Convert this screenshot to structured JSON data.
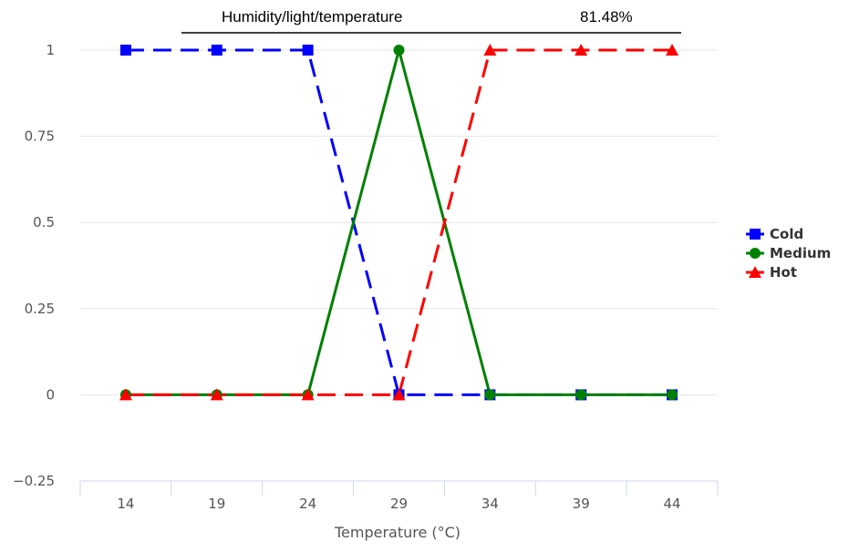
{
  "header": {
    "title": "Humidity/light/temperature",
    "value": "81.48%"
  },
  "chart_data": {
    "type": "line",
    "xlabel": "Temperature (°C)",
    "ylabel": "",
    "categories": [
      "14",
      "19",
      "24",
      "29",
      "34",
      "39",
      "44"
    ],
    "ylim": [
      -0.25,
      1
    ],
    "yticks": [
      -0.25,
      0,
      0.25,
      0.5,
      0.75,
      1
    ],
    "ytick_labels": [
      "−0.25",
      "0",
      "0.25",
      "0.5",
      "0.75",
      "1"
    ],
    "grid": true,
    "legend_position": "right",
    "series": [
      {
        "name": "Cold",
        "values": [
          1,
          1,
          1,
          0,
          0,
          0,
          0
        ],
        "color": "#0000ff",
        "marker": "square",
        "dashed": true
      },
      {
        "name": "Medium",
        "values": [
          0,
          0,
          0,
          1,
          0,
          0,
          0
        ],
        "color": "#008000",
        "marker": "circle",
        "dashed": false
      },
      {
        "name": "Hot",
        "values": [
          0,
          0,
          0,
          0,
          1,
          1,
          1
        ],
        "color": "#ff0000",
        "marker": "triangle",
        "dashed": true
      }
    ]
  }
}
